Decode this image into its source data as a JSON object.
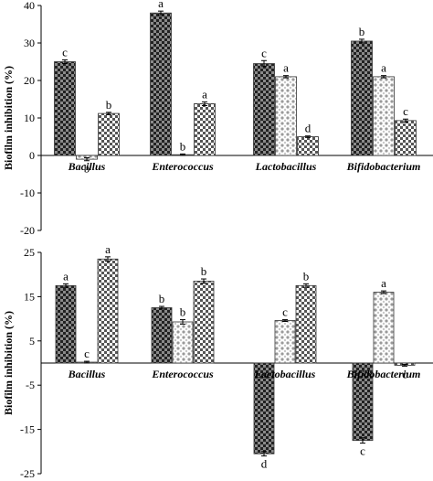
{
  "chart_data": [
    {
      "type": "bar",
      "ylabel": "Biofilm inhibition (%)",
      "ylim": [
        -20,
        40
      ],
      "yticks": [
        -20,
        -10,
        0,
        10,
        20,
        30,
        40
      ],
      "categories": [
        "Bacillus",
        "Enterococcus",
        "Lactobacillus",
        "Bifidobacterium"
      ],
      "series": [
        {
          "values": [
            25,
            38,
            24.5,
            30.5
          ],
          "errors": [
            0.5,
            0.5,
            0.8,
            0.5
          ],
          "letters": [
            "c",
            "a",
            "c",
            "b"
          ],
          "pattern": "dark"
        },
        {
          "values": [
            -1,
            0.2,
            21,
            21
          ],
          "errors": [
            0.4,
            0.2,
            0.3,
            0.3
          ],
          "letters": [
            "b",
            "b",
            "a",
            "a"
          ],
          "pattern": "light"
        },
        {
          "values": [
            11.2,
            13.8,
            5,
            9.3
          ],
          "errors": [
            0.3,
            0.5,
            0.2,
            0.4
          ],
          "letters": [
            "b",
            "a",
            "d",
            "c"
          ],
          "pattern": "medium"
        }
      ],
      "grid": false,
      "legend": "none"
    },
    {
      "type": "bar",
      "ylabel": "Biofilm inhibition (%)",
      "ylim": [
        -25,
        25
      ],
      "yticks": [
        -25,
        -15,
        -5,
        5,
        15,
        25
      ],
      "categories": [
        "Bacillus",
        "Enterococcus",
        "Lactobacillus",
        "Bifidobacterium"
      ],
      "series": [
        {
          "values": [
            17.5,
            12.5,
            -20.5,
            -17.5
          ],
          "errors": [
            0.4,
            0.3,
            0.5,
            0.6
          ],
          "letters": [
            "a",
            "b",
            "d",
            "c"
          ],
          "pattern": "dark"
        },
        {
          "values": [
            0.2,
            9.3,
            9.6,
            16
          ],
          "errors": [
            0.2,
            0.5,
            0.2,
            0.3
          ],
          "letters": [
            "c",
            "b",
            "c",
            "a"
          ],
          "pattern": "light"
        },
        {
          "values": [
            23.5,
            18.5,
            17.5,
            -0.5
          ],
          "errors": [
            0.5,
            0.5,
            0.4,
            0.2
          ],
          "letters": [
            "a",
            "b",
            "b",
            "c"
          ],
          "pattern": "medium"
        }
      ],
      "grid": false,
      "legend": "none"
    }
  ]
}
